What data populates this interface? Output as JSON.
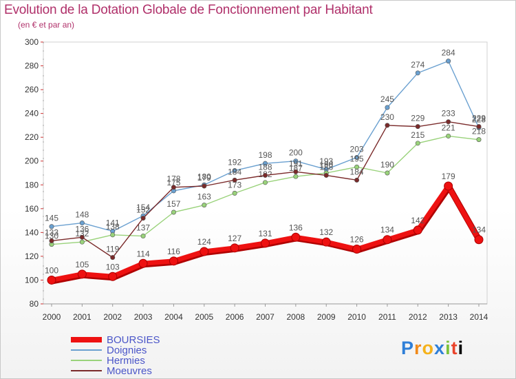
{
  "title": "Evolution de la Dotation Globale de Fonctionnement par Habitant",
  "subtitle": "(en € et par an)",
  "logo": "Proxiti",
  "chart_data": {
    "type": "line",
    "title": "Evolution de la Dotation Globale de Fonctionnement par Habitant",
    "subtitle": "(en € et par an)",
    "xlabel": "",
    "ylabel": "",
    "ylim": [
      80,
      300
    ],
    "yticks": [
      80,
      100,
      120,
      140,
      160,
      180,
      200,
      220,
      240,
      260,
      280,
      300
    ],
    "grid": false,
    "legend_position": "bottom-left",
    "x": [
      "2000",
      "2001",
      "2002",
      "2003",
      "2004",
      "2005",
      "2006",
      "2007",
      "2008",
      "2009",
      "2010",
      "2011",
      "2012",
      "2013",
      "2014"
    ],
    "series": [
      {
        "name": "BOURSIES",
        "color": "#ee1111",
        "values": [
          100,
          105,
          103,
          114,
          116,
          124,
          127,
          131,
          136,
          132,
          126,
          134,
          142,
          179,
          134
        ]
      },
      {
        "name": "Doignies",
        "color": "#6aa0d0",
        "values": [
          145,
          148,
          141,
          154,
          175,
          180,
          192,
          198,
          200,
          193,
          203,
          245,
          274,
          284,
          228
        ]
      },
      {
        "name": "Hermies",
        "color": "#99d27a",
        "values": [
          130,
          132,
          138,
          137,
          157,
          163,
          173,
          182,
          187,
          190,
          195,
          190,
          215,
          221,
          218
        ]
      },
      {
        "name": "Moeuvres",
        "color": "#7a2a2a",
        "values": [
          133,
          136,
          119,
          152,
          178,
          179,
          184,
          188,
          191,
          188,
          184,
          230,
          229,
          233,
          229
        ]
      }
    ]
  }
}
